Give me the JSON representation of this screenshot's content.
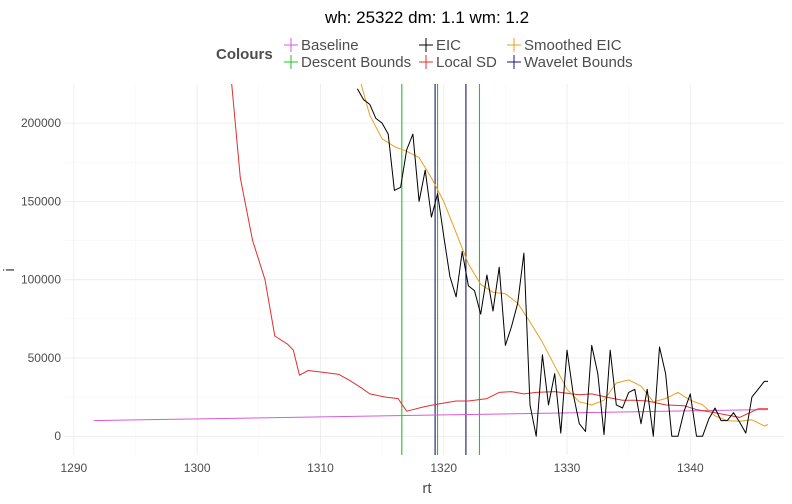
{
  "chart_data": {
    "type": "line",
    "title": "wh: 25322 dm: 1.1 wm: 1.2",
    "xlabel": "rt",
    "ylabel": "i",
    "xlim": [
      1289.2,
      1347.6
    ],
    "ylim": [
      -12000,
      225000
    ],
    "xticks": [
      1290,
      1300,
      1310,
      1320,
      1330,
      1340
    ],
    "yticks": [
      0,
      50000,
      100000,
      150000,
      200000
    ],
    "ytick_labels": [
      "0",
      "50000",
      "100000",
      "150000",
      "200000"
    ],
    "grid": true,
    "legend": {
      "title": "Colours",
      "placement": "top",
      "entries": [
        {
          "label": "Baseline",
          "color": "#d85ad8"
        },
        {
          "label": "Descent Bounds",
          "color": "#22c322"
        },
        {
          "label": "EIC",
          "color": "#000000"
        },
        {
          "label": "Local SD",
          "color": "#e03030"
        },
        {
          "label": "Smoothed EIC",
          "color": "#e8a020"
        },
        {
          "label": "Wavelet Bounds",
          "color": "#1a1a6e"
        }
      ]
    },
    "series": [
      {
        "label": "Baseline",
        "color": "#d85ad8",
        "x": [
          1291.6,
          1346.3
        ],
        "y": [
          10000,
          17000
        ]
      },
      {
        "label": "Local SD",
        "color": "#e03030",
        "x": [
          1302.8,
          1303.5,
          1304.5,
          1305.5,
          1306.3,
          1307.3,
          1307.8,
          1308.3,
          1309.0,
          1310.5,
          1311.5,
          1312.3,
          1313.3,
          1314.0,
          1315.3,
          1316.3,
          1317.0,
          1318.5,
          1319.5,
          1321.0,
          1322.0,
          1323.5,
          1324.5,
          1325.5,
          1326.5,
          1327.5,
          1329.0,
          1330.0,
          1331.0,
          1332.0,
          1333.5,
          1334.5,
          1335.5,
          1336.5,
          1338.0,
          1339.5,
          1340.5,
          1342.0,
          1344.0,
          1345.5,
          1346.3
        ],
        "y": [
          225000,
          165000,
          125000,
          100000,
          64000,
          59000,
          55000,
          39000,
          42000,
          40500,
          39500,
          36000,
          31000,
          27000,
          25000,
          24000,
          16000,
          19000,
          20500,
          22500,
          22500,
          24000,
          28000,
          28500,
          27000,
          28000,
          28500,
          27500,
          26500,
          27000,
          24500,
          23000,
          23000,
          22500,
          20000,
          19500,
          17000,
          15000,
          12000,
          17500,
          17500
        ]
      },
      {
        "label": "Smoothed EIC",
        "color": "#e8a020",
        "x": [
          1313.3,
          1314.0,
          1315.0,
          1316.0,
          1317.0,
          1318.0,
          1319.0,
          1320.0,
          1321.0,
          1322.0,
          1323.0,
          1324.0,
          1325.0,
          1326.0,
          1327.0,
          1328.0,
          1329.0,
          1330.0,
          1331.0,
          1332.0,
          1333.0,
          1334.0,
          1335.0,
          1336.0,
          1337.0,
          1338.0,
          1339.0,
          1340.0,
          1341.0,
          1342.0,
          1343.0,
          1344.0,
          1345.0,
          1346.0,
          1346.3
        ],
        "y": [
          225000,
          205000,
          190000,
          185000,
          182000,
          178000,
          165000,
          150000,
          130000,
          110000,
          97000,
          92000,
          91000,
          85000,
          73000,
          60000,
          45000,
          30000,
          22000,
          20000,
          23000,
          34000,
          36000,
          32000,
          22000,
          24000,
          28000,
          23000,
          20000,
          13000,
          10000,
          9500,
          10500,
          6500,
          7500
        ]
      },
      {
        "label": "EIC",
        "color": "#000000",
        "x": [
          1313.0,
          1313.5,
          1314.0,
          1314.5,
          1315.0,
          1315.5,
          1316.0,
          1316.5,
          1317.0,
          1317.5,
          1318.0,
          1318.5,
          1319.0,
          1319.5,
          1320.0,
          1320.5,
          1321.0,
          1321.5,
          1322.0,
          1322.5,
          1323.0,
          1323.5,
          1324.0,
          1324.5,
          1325.0,
          1325.5,
          1326.0,
          1326.5,
          1327.0,
          1327.5,
          1328.0,
          1328.5,
          1329.0,
          1329.5,
          1330.0,
          1330.5,
          1331.0,
          1331.5,
          1332.0,
          1332.5,
          1333.0,
          1333.5,
          1334.0,
          1334.5,
          1335.0,
          1335.5,
          1336.0,
          1336.5,
          1337.0,
          1337.5,
          1338.0,
          1338.5,
          1339.0,
          1339.5,
          1340.0,
          1340.5,
          1341.0,
          1341.5,
          1342.0,
          1342.5,
          1343.0,
          1343.5,
          1344.0,
          1344.5,
          1345.0,
          1345.5,
          1346.0,
          1346.3
        ],
        "y": [
          222000,
          215000,
          212000,
          203000,
          200000,
          193000,
          157000,
          159000,
          183000,
          193000,
          150000,
          170000,
          140000,
          155000,
          128000,
          102000,
          89000,
          118000,
          96000,
          93000,
          78000,
          103000,
          80000,
          108000,
          58000,
          70000,
          85000,
          117000,
          20000,
          0,
          52000,
          20000,
          40000,
          2000,
          55000,
          27000,
          8000,
          3000,
          58000,
          40000,
          1000,
          55000,
          20000,
          18000,
          28000,
          30000,
          8000,
          30000,
          0,
          57000,
          40000,
          0,
          0,
          16000,
          27000,
          0,
          0,
          11000,
          18000,
          10000,
          10000,
          15000,
          9000,
          2000,
          25000,
          30000,
          35000,
          35000
        ]
      }
    ],
    "vlines": [
      {
        "label": "Descent Bounds",
        "color": "#22c322",
        "x": 1316.6
      },
      {
        "label": "Descent Bounds",
        "color": "#22c322",
        "x": 1319.5
      },
      {
        "label": "Descent Bounds",
        "color": "#22c322",
        "x": 1322.9
      },
      {
        "label": "Wavelet Bounds",
        "color": "#1a1a6e",
        "x": 1319.3
      },
      {
        "label": "Wavelet Bounds",
        "color": "#1a1a6e",
        "x": 1321.8
      }
    ]
  }
}
